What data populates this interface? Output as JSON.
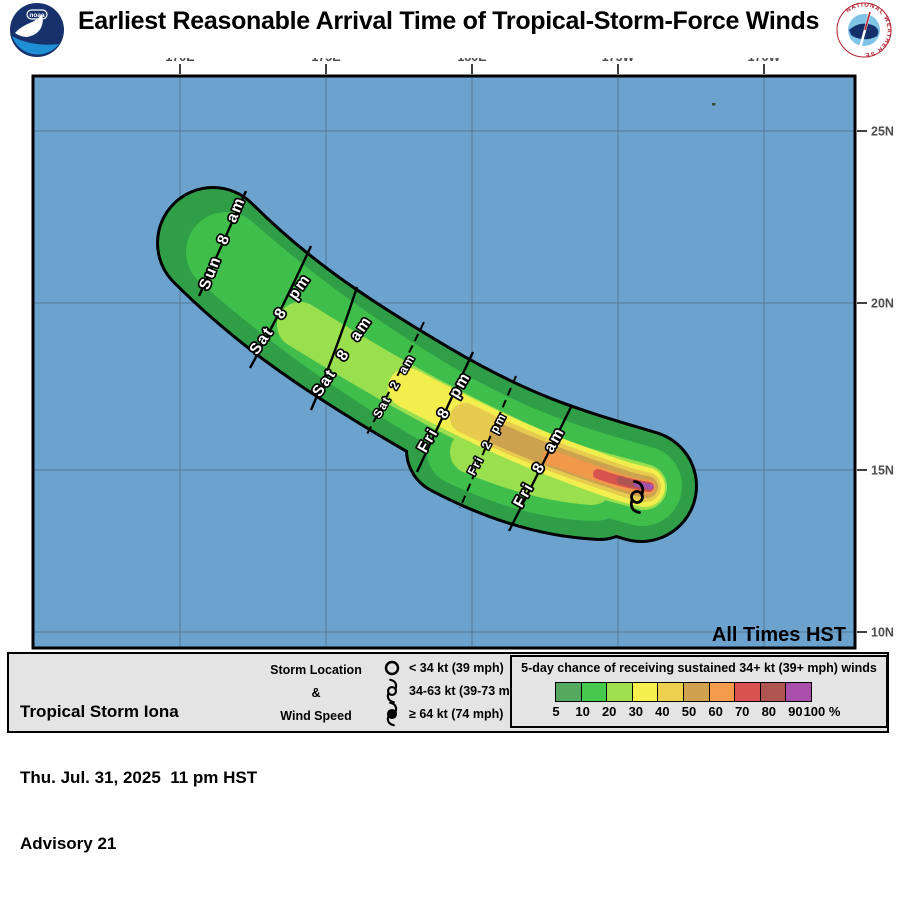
{
  "header": {
    "title": "Earliest Reasonable Arrival Time of Tropical-Storm-Force Winds",
    "noaa_label": "noaa",
    "nws_label": "NATIONAL WEATHER SERVICE"
  },
  "map": {
    "ocean_color": "#6CA2CE",
    "gridline_color": "#53748F",
    "top_ticks": [
      "170E",
      "175E",
      "180E",
      "175W",
      "170W"
    ],
    "right_ticks": [
      "25N",
      "20N",
      "15N",
      "10N"
    ],
    "watermark": "All Times HST",
    "contours": [
      {
        "label": "Sun 8 am",
        "style": "solid"
      },
      {
        "label": "Sat 8 pm",
        "style": "solid"
      },
      {
        "label": "Sat 8 am",
        "style": "solid"
      },
      {
        "label": "Sat 2 am",
        "style": "dashed"
      },
      {
        "label": "Fri 8 pm",
        "style": "solid"
      },
      {
        "label": "Fri 2 pm",
        "style": "dashed"
      },
      {
        "label": "Fri 8 am",
        "style": "solid"
      }
    ],
    "storm_symbol": "tropical-storm-symbol-34-63kt"
  },
  "palette": {
    "percent_steps": [
      5,
      10,
      20,
      30,
      40,
      50,
      60,
      70,
      80,
      90,
      100
    ],
    "legend": [
      "#56A85F",
      "#47C94E",
      "#9EE04D",
      "#F5F04E",
      "#EDD04E",
      "#CEA24F",
      "#F59B4D",
      "#D8534F",
      "#AF5451",
      "#AA50AC"
    ],
    "map_bands": [
      "#2F9E47",
      "#3FBE4B",
      "#9ADF4E",
      "#F2EE4E",
      "#E7CB4E",
      "#CCA24F",
      "#F0994B",
      "#D6534E",
      "#AC5451",
      "#A551A9"
    ]
  },
  "footer": {
    "storm_name": "Tropical Storm Iona",
    "datetime": "Thu. Jul. 31, 2025  11 pm HST",
    "advisory": "Advisory 21",
    "symbol_key": {
      "heading_line1": "Storm Location",
      "heading_line2": "&",
      "heading_line3": "Wind Speed",
      "items": [
        {
          "symbol": "open-circle",
          "label": "< 34 kt (39 mph)"
        },
        {
          "symbol": "ts-open",
          "label": "34-63 kt (39-73 mph)"
        },
        {
          "symbol": "ts-filled",
          "label": "≥ 64 kt (74 mph)"
        }
      ]
    },
    "probability_legend": {
      "title": "5-day chance of receiving sustained 34+ kt (39+ mph) winds",
      "tick_labels": [
        "5",
        "10",
        "20",
        "30",
        "40",
        "50",
        "60",
        "70",
        "80",
        "90",
        "100 %"
      ]
    }
  }
}
